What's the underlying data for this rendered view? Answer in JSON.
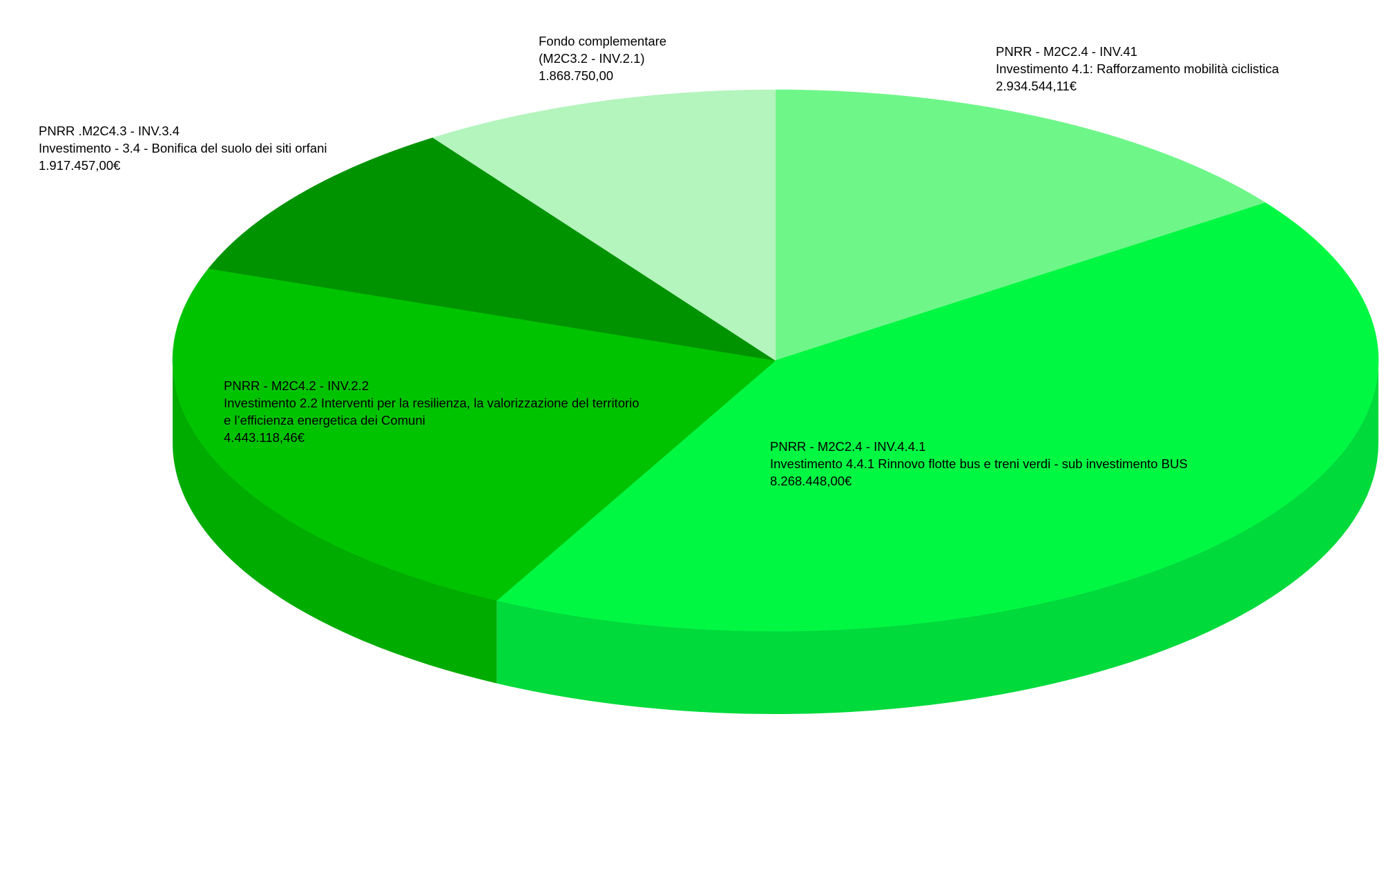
{
  "chart_data": {
    "type": "pie",
    "style": "3d",
    "title": "",
    "slices": [
      {
        "name": "PNRR - M2C2.4 - INV.41 Investimento 4.1: Rafforzamento mobilità ciclistica",
        "value": 2934544.11,
        "color": "#6ff689",
        "label_lines": [
          "PNRR - M2C2.4 - INV.41",
          "Investimento 4.1: Rafforzamento mobilità ciclistica",
          "2.934.544,11€"
        ]
      },
      {
        "name": "PNRR - M2C2.4 - INV.4.4.1 Investimento 4.4.1 Rinnovo flotte bus e treni verdi - sub investimento BUS",
        "value": 8268448.0,
        "color": "#00f843",
        "label_lines": [
          "PNRR - M2C2.4 - INV.4.4.1",
          "Investimento 4.4.1 Rinnovo flotte bus e treni verdi - sub investimento BUS",
          "8.268.448,00€"
        ]
      },
      {
        "name": "PNRR - M2C4.2 - INV.2.2 Investimento 2.2 Interventi per la resilienza, la valorizzazione del territorio e l'efficienza energetica dei Comuni",
        "value": 4443118.46,
        "color": "#00c300",
        "label_lines": [
          "PNRR - M2C4.2 - INV.2.2",
          "Investimento 2.2 Interventi per la resilienza, la valorizzazione del territorio",
          "e l’efficienza energetica dei Comuni",
          "4.443.118,46€"
        ]
      },
      {
        "name": "PNRR .M2C4.3 - INV.3.4 Investimento - 3.4 - Bonifica del suolo dei siti orfani",
        "value": 1917457.0,
        "color": "#009300",
        "label_lines": [
          "PNRR .M2C4.3 - INV.3.4",
          "Investimento - 3.4 - Bonifica del suolo dei siti orfani",
          "1.917.457,00€"
        ]
      },
      {
        "name": "Fondo complementare (M2C3.2 - INV.2.1)",
        "value": 1868750.0,
        "color": "#b4f4bd",
        "label_lines": [
          "Fondo complementare",
          "(M2C3.2 - INV.2.1)",
          "1.868.750,00"
        ]
      }
    ]
  }
}
